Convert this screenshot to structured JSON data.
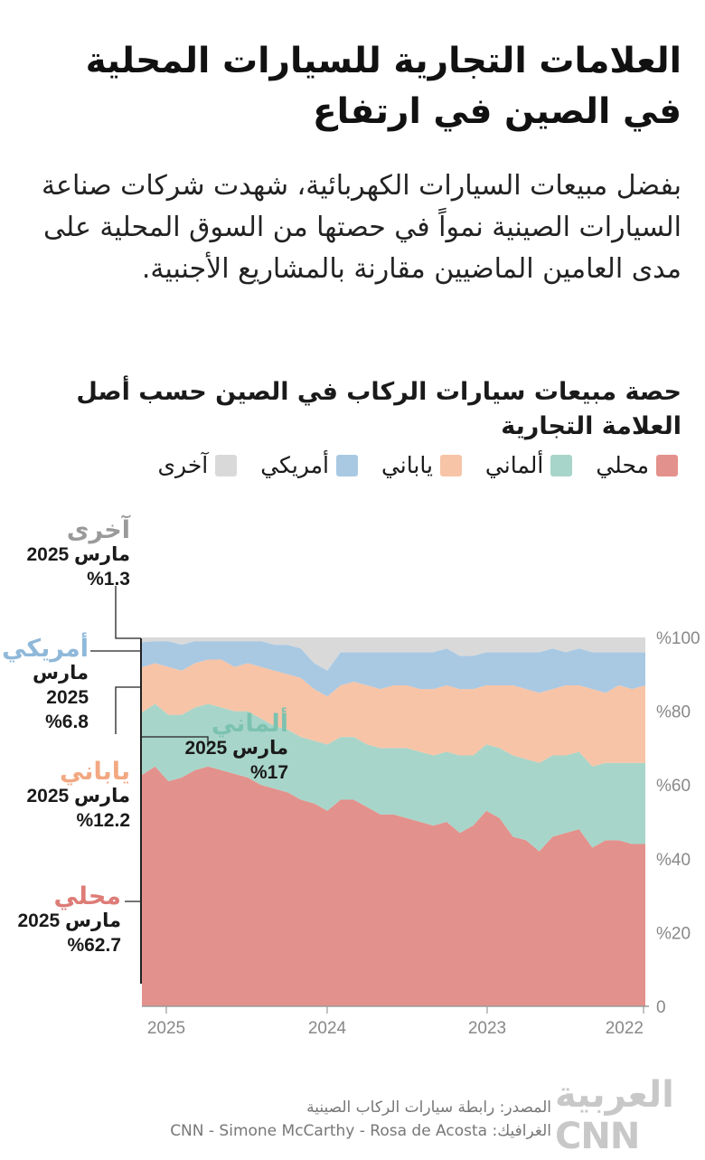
{
  "headline": "العلامات التجارية للسيارات المحلية في الصين في ارتفاع",
  "subtitle": "بفضل مبيعات السيارات الكهربائية، شهدت شركات صناعة السيارات الصينية نمواً في حصتها من السوق المحلية على مدى العامين الماضيين مقارنة بالمشاريع الأجنبية.",
  "chart_title": "حصة مبيعات سيارات الركاب في الصين حسب أصل العلامة التجارية",
  "legend": [
    {
      "label": "محلي",
      "color": "#e3918c"
    },
    {
      "label": "ألماني",
      "color": "#a8d5c9"
    },
    {
      "label": "ياباني",
      "color": "#f7c4a7"
    },
    {
      "label": "أمريكي",
      "color": "#a9c9e3"
    },
    {
      "label": "آخرى",
      "color": "#d9d9d9"
    }
  ],
  "callouts": {
    "other": {
      "name": "آخرى",
      "date": "مارس 2025",
      "value": "%1.3",
      "color": "#9a9a9a"
    },
    "american": {
      "name": "أمريكي",
      "date_line1": "مارس",
      "date_line2": "2025",
      "value": "%6.8",
      "color": "#8fb8d9"
    },
    "german": {
      "name": "ألماني",
      "date": "مارس 2025",
      "value": "%17",
      "color": "#7cc2b0"
    },
    "japanese": {
      "name": "ياباني",
      "date": "مارس 2025",
      "value": "%12.2",
      "color": "#f2a882"
    },
    "domestic": {
      "name": "محلي",
      "date": "مارس 2025",
      "value": "%62.7",
      "color": "#de7c77"
    }
  },
  "source_line1": "المصدر: رابطة سيارات الركاب الصينية",
  "source_line2": "الغرافيك: CNN - Simone McCarthy - Rosa de Acosta",
  "logo_text": "العربية CNN",
  "chart_data": {
    "type": "area",
    "stacked": true,
    "x_axis_direction": "right-to-left",
    "x_tick_labels": [
      "2025",
      "2024",
      "2023",
      "2022"
    ],
    "y_tick_labels": [
      "0",
      "%20",
      "%40",
      "%60",
      "%80",
      "%100"
    ],
    "ylim": [
      0,
      100
    ],
    "x": [
      "2025-03",
      "2025-02",
      "2025-01",
      "2024-12",
      "2024-11",
      "2024-10",
      "2024-09",
      "2024-08",
      "2024-07",
      "2024-06",
      "2024-05",
      "2024-04",
      "2024-03",
      "2024-02",
      "2024-01",
      "2023-12",
      "2023-11",
      "2023-10",
      "2023-09",
      "2023-08",
      "2023-07",
      "2023-06",
      "2023-05",
      "2023-04",
      "2023-03",
      "2023-02",
      "2023-01",
      "2022-12",
      "2022-11",
      "2022-10",
      "2022-09",
      "2022-08",
      "2022-07",
      "2022-06",
      "2022-05",
      "2022-04",
      "2022-03",
      "2022-02",
      "2022-01"
    ],
    "series": [
      {
        "name": "محلي",
        "color": "#e3918c",
        "values": [
          62.7,
          65,
          61,
          62,
          64,
          65,
          64,
          63,
          62,
          60,
          59,
          58,
          56,
          55,
          53,
          56,
          56,
          54,
          52,
          52,
          51,
          50,
          49,
          50,
          47,
          49,
          53,
          51,
          46,
          45,
          42,
          46,
          47,
          48,
          43,
          45,
          45,
          44,
          44
        ]
      },
      {
        "name": "ألماني",
        "color": "#a8d5c9",
        "values": [
          17,
          17,
          18,
          17,
          17,
          17,
          17,
          17,
          18,
          18,
          17,
          17,
          17,
          17,
          18,
          17,
          17,
          17,
          18,
          18,
          19,
          19,
          19,
          19,
          21,
          19,
          18,
          19,
          22,
          22,
          24,
          22,
          21,
          21,
          22,
          21,
          21,
          22,
          22
        ]
      },
      {
        "name": "ياباني",
        "color": "#f7c4a7",
        "values": [
          12.2,
          11,
          13,
          12,
          12,
          12,
          13,
          12,
          13,
          14,
          15,
          15,
          16,
          14,
          13,
          14,
          15,
          16,
          16,
          17,
          17,
          17,
          18,
          18,
          18,
          18,
          16,
          17,
          19,
          19,
          19,
          18,
          19,
          18,
          21,
          19,
          21,
          20,
          21
        ]
      },
      {
        "name": "أمريكي",
        "color": "#a9c9e3",
        "values": [
          6.8,
          6,
          7,
          7,
          6,
          5,
          5,
          7,
          6,
          7,
          7,
          8,
          8,
          7,
          7,
          9,
          8,
          9,
          10,
          9,
          9,
          10,
          10,
          10,
          9,
          9,
          9,
          9,
          9,
          10,
          11,
          11,
          9,
          10,
          10,
          11,
          9,
          10,
          9
        ]
      },
      {
        "name": "آخرى",
        "color": "#d9d9d9",
        "values": [
          1.3,
          1,
          1,
          2,
          1,
          1,
          1,
          1,
          1,
          1,
          2,
          2,
          3,
          7,
          9,
          4,
          4,
          4,
          4,
          4,
          4,
          4,
          4,
          3,
          5,
          5,
          4,
          4,
          4,
          4,
          4,
          3,
          4,
          3,
          4,
          4,
          4,
          4,
          4
        ]
      }
    ]
  }
}
